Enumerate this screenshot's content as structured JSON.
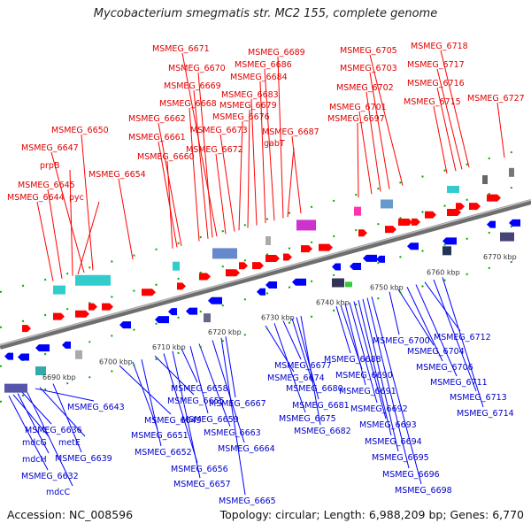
{
  "title": "Mycobacterium smegmatis str. MC2 155, complete genome",
  "footer": {
    "accession": "Accession: NC_008596",
    "summary": "Topology: circular; Length: 6,988,209 bp; Genes: 6,770"
  },
  "colors": {
    "forward": "#ff0000",
    "reverse": "#0000ff",
    "backbone": "#888888",
    "tick": "#00aa00"
  },
  "scale_labels": [
    "6690 kbp",
    "6700 kbp",
    "6710 kbp",
    "6720 kbp",
    "6730 kbp",
    "6740 kbp",
    "6750 kbp",
    "6760 kbp",
    "6770 kbp"
  ],
  "top_genes": [
    "MSMEG_6644",
    "MSMEG_6645",
    "pyc",
    "prpB",
    "MSMEG_6647",
    "MSMEG_6650",
    "MSMEG_6654",
    "MSMEG_6660",
    "MSMEG_6661",
    "MSMEG_6662",
    "MSMEG_6668",
    "MSMEG_6669",
    "MSMEG_6670",
    "MSMEG_6671",
    "MSMEG_6672",
    "MSMEG_6673",
    "MSMEG_6676",
    "MSMEG_6679",
    "MSMEG_6683",
    "MSMEG_6684",
    "MSMEG_6686",
    "MSMEG_6689",
    "gabT",
    "MSMEG_6687",
    "MSMEG_6697",
    "MSMEG_6701",
    "MSMEG_6702",
    "MSMEG_6703",
    "MSMEG_6705",
    "MSMEG_6715",
    "MSMEG_6716",
    "MSMEG_6717",
    "MSMEG_6718",
    "MSMEG_6727"
  ],
  "bottom_genes": [
    "MSMEG_6643",
    "MSMEG_6636",
    "metE",
    "MSMEG_6639",
    "mdcG",
    "mdcH",
    "MSMEG_6632",
    "mdcC",
    "MSMEG_6649",
    "MSMEG_6651",
    "MSMEG_6652",
    "MSMEG_6655",
    "MSMEG_6656",
    "MSMEG_6657",
    "MSMEG_6658",
    "MSMEG_6659",
    "MSMEG_6663",
    "MSMEG_6664",
    "MSMEG_6665",
    "MSMEG_6667",
    "MSMEG_6674",
    "MSMEG_6675",
    "MSMEG_6677",
    "MSMEG_6680",
    "MSMEG_6681",
    "MSMEG_6682",
    "MSMEG_6688",
    "MSMEG_6690",
    "MSMEG_6691",
    "MSMEG_6692",
    "MSMEG_6693",
    "MSMEG_6694",
    "MSMEG_6695",
    "MSMEG_6696",
    "MSMEG_6698",
    "MSMEG_6700",
    "MSMEG_6704",
    "MSMEG_6706",
    "MSMEG_6711",
    "MSMEG_6712",
    "MSMEG_6713",
    "MSMEG_6714"
  ]
}
